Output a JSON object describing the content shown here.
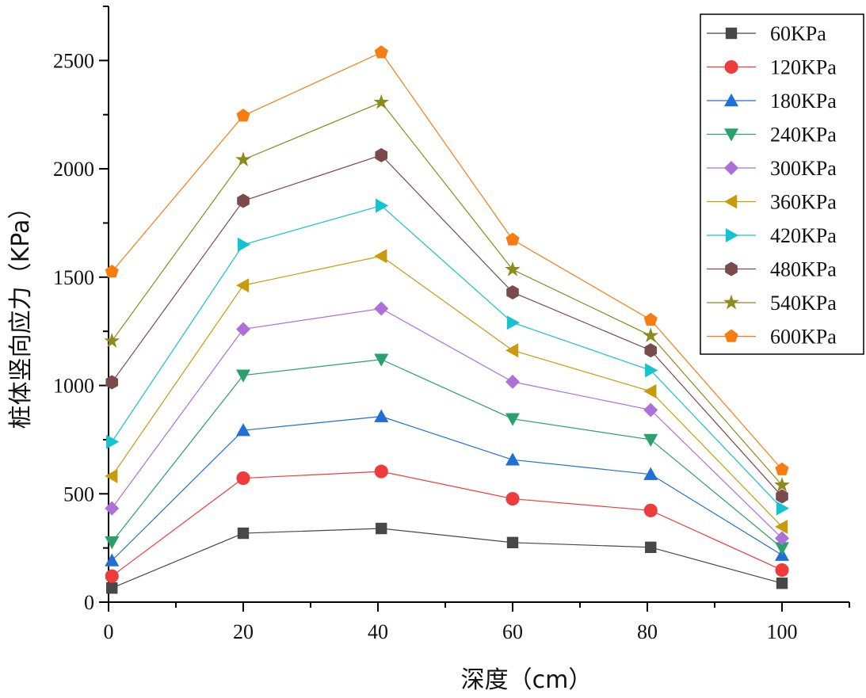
{
  "chart_data": {
    "type": "line",
    "title": "",
    "xlabel": "深度（cm）",
    "ylabel": "桩体竖向应力（KPa）",
    "xlim": [
      0,
      110
    ],
    "ylim": [
      0,
      2750
    ],
    "x_ticks": [
      0,
      20,
      40,
      60,
      80,
      100
    ],
    "y_ticks": [
      0,
      500,
      1000,
      1500,
      2000,
      2500
    ],
    "x": [
      0.5,
      20,
      40.5,
      60,
      80.5,
      100
    ],
    "legend_position": "top-right",
    "series": [
      {
        "name": "60KPa",
        "color": "#474747",
        "marker": "square",
        "values": [
          65,
          318,
          340,
          275,
          253,
          87
        ]
      },
      {
        "name": "120KPa",
        "color": "#ef3b3b",
        "marker": "circle",
        "values": [
          120,
          572,
          603,
          477,
          423,
          148
        ]
      },
      {
        "name": "180KPa",
        "color": "#1f6fd6",
        "marker": "triangle-up",
        "values": [
          192,
          793,
          857,
          657,
          590,
          217
        ]
      },
      {
        "name": "240KPa",
        "color": "#2aa06c",
        "marker": "triangle-down",
        "values": [
          277,
          1047,
          1120,
          846,
          750,
          250
        ]
      },
      {
        "name": "300KPa",
        "color": "#ad6fd9",
        "marker": "diamond",
        "values": [
          433,
          1260,
          1355,
          1017,
          887,
          295
        ]
      },
      {
        "name": "360KPa",
        "color": "#c89b0d",
        "marker": "triangle-left",
        "values": [
          582,
          1462,
          1597,
          1162,
          973,
          348
        ]
      },
      {
        "name": "420KPa",
        "color": "#14c3cf",
        "marker": "triangle-right",
        "values": [
          740,
          1650,
          1830,
          1290,
          1070,
          433
        ]
      },
      {
        "name": "480KPa",
        "color": "#7b4a4a",
        "marker": "hexagon",
        "values": [
          1015,
          1852,
          2063,
          1430,
          1162,
          488
        ]
      },
      {
        "name": "540KPa",
        "color": "#8b8b1e",
        "marker": "star",
        "values": [
          1205,
          2042,
          2307,
          1535,
          1230,
          540
        ]
      },
      {
        "name": "600KPa",
        "color": "#f77c12",
        "marker": "pentagon",
        "values": [
          1525,
          2245,
          2537,
          1673,
          1303,
          612
        ]
      }
    ]
  }
}
